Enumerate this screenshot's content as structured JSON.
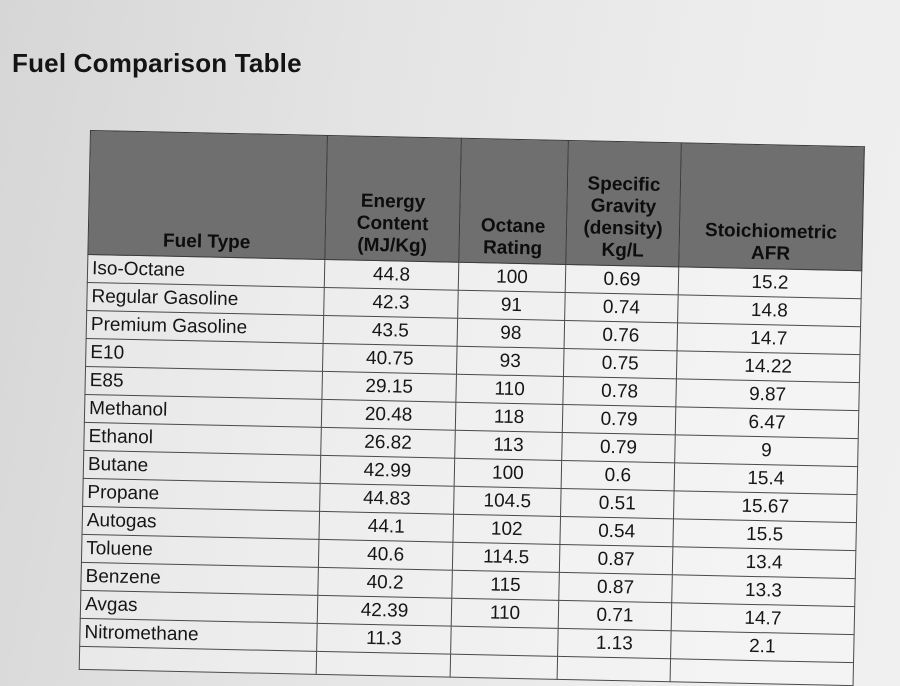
{
  "title": "Fuel Comparison Table",
  "table": {
    "headers": {
      "fuel_type": "Fuel Type",
      "energy_content": [
        "Energy",
        "Content",
        "(MJ/Kg)"
      ],
      "octane_rating": [
        "Octane",
        "Rating"
      ],
      "specific_gravity": [
        "Specific",
        "Gravity",
        "(density)",
        "Kg/L"
      ],
      "stoichiometric_afr": [
        "Stoichiometric",
        "AFR"
      ]
    },
    "rows": [
      {
        "fuel": "Iso-Octane",
        "energy": "44.8",
        "octane": "100",
        "gravity": "0.69",
        "afr": "15.2"
      },
      {
        "fuel": "Regular Gasoline",
        "energy": "42.3",
        "octane": "91",
        "gravity": "0.74",
        "afr": "14.8"
      },
      {
        "fuel": "Premium Gasoline",
        "energy": "43.5",
        "octane": "98",
        "gravity": "0.76",
        "afr": "14.7"
      },
      {
        "fuel": "E10",
        "energy": "40.75",
        "octane": "93",
        "gravity": "0.75",
        "afr": "14.22"
      },
      {
        "fuel": "E85",
        "energy": "29.15",
        "octane": "110",
        "gravity": "0.78",
        "afr": "9.87"
      },
      {
        "fuel": "Methanol",
        "energy": "20.48",
        "octane": "118",
        "gravity": "0.79",
        "afr": "6.47"
      },
      {
        "fuel": "Ethanol",
        "energy": "26.82",
        "octane": "113",
        "gravity": "0.79",
        "afr": "9"
      },
      {
        "fuel": "Butane",
        "energy": "42.99",
        "octane": "100",
        "gravity": "0.6",
        "afr": "15.4"
      },
      {
        "fuel": "Propane",
        "energy": "44.83",
        "octane": "104.5",
        "gravity": "0.51",
        "afr": "15.67"
      },
      {
        "fuel": "Autogas",
        "energy": "44.1",
        "octane": "102",
        "gravity": "0.54",
        "afr": "15.5"
      },
      {
        "fuel": "Toluene",
        "energy": "40.6",
        "octane": "114.5",
        "gravity": "0.87",
        "afr": "13.4"
      },
      {
        "fuel": "Benzene",
        "energy": "40.2",
        "octane": "115",
        "gravity": "0.87",
        "afr": "13.3"
      },
      {
        "fuel": "Avgas",
        "energy": "42.39",
        "octane": "110",
        "gravity": "0.71",
        "afr": "14.7"
      },
      {
        "fuel": "Nitromethane",
        "energy": "11.3",
        "octane": "",
        "gravity": "1.13",
        "afr": "2.1"
      }
    ]
  }
}
